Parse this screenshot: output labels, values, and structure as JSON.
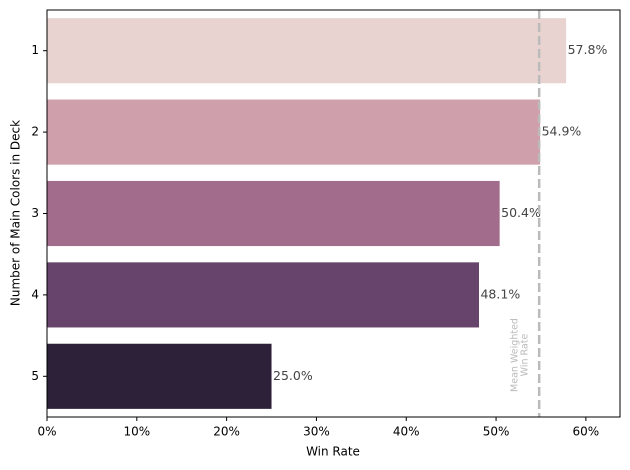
{
  "chart_data": {
    "type": "bar",
    "orientation": "horizontal",
    "x_label": "Win Rate",
    "y_label": "Number of Main Colors in Deck",
    "categories": [
      "1",
      "2",
      "3",
      "4",
      "5"
    ],
    "values": [
      57.8,
      54.9,
      50.4,
      48.1,
      25.0
    ],
    "value_labels": [
      "57.8%",
      "54.9%",
      "50.4%",
      "48.1%",
      "25.0%"
    ],
    "colors": [
      "#e8d3d0",
      "#cf9fab",
      "#a26d8c",
      "#66446b",
      "#2d2139"
    ],
    "xlim": [
      0,
      63.8
    ],
    "xticks": [
      {
        "value": 0,
        "label": "0%"
      },
      {
        "value": 10,
        "label": "10%"
      },
      {
        "value": 20,
        "label": "20%"
      },
      {
        "value": 30,
        "label": "30%"
      },
      {
        "value": 40,
        "label": "40%"
      },
      {
        "value": 50,
        "label": "50%"
      },
      {
        "value": 60,
        "label": "60%"
      }
    ],
    "reference_line": {
      "value": 54.8,
      "label": [
        "Mean Weighted",
        "Win Rate"
      ]
    }
  }
}
